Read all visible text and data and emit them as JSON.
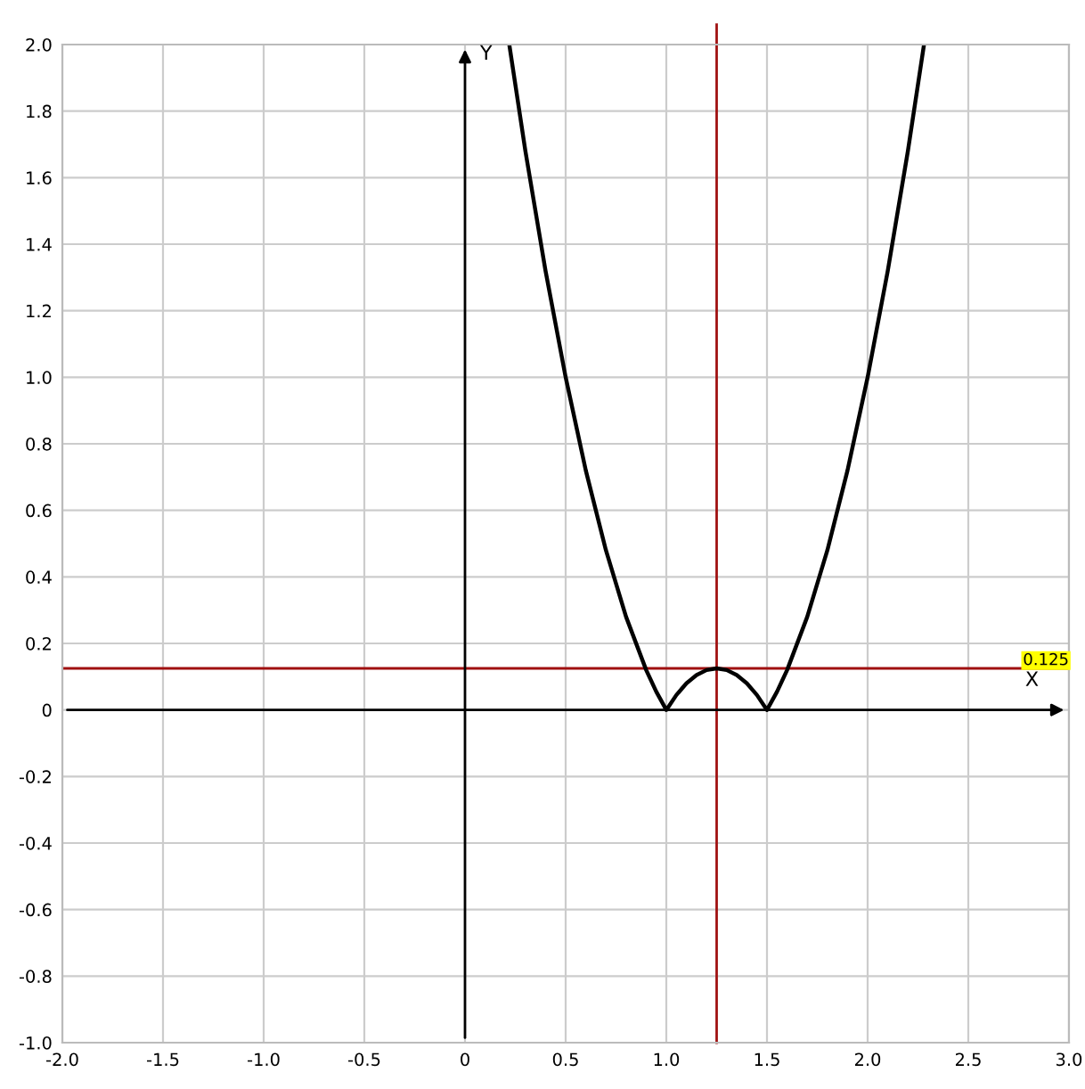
{
  "chart_data": {
    "type": "line",
    "xlabel": "X",
    "ylabel": "Y",
    "x": [
      0.22,
      0.3,
      0.4,
      0.5,
      0.6,
      0.7,
      0.8,
      0.9,
      0.95,
      1.0,
      1.05,
      1.1,
      1.15,
      1.2,
      1.25,
      1.3,
      1.35,
      1.4,
      1.45,
      1.5,
      1.55,
      1.6,
      1.7,
      1.8,
      1.9,
      2.0,
      2.1,
      2.2,
      2.28
    ],
    "series": [
      {
        "color": "#000000",
        "values": [
          2.0,
          1.68,
          1.32,
          1.0,
          0.72,
          0.48,
          0.28,
          0.12,
          0.055,
          0,
          0.045,
          0.08,
          0.105,
          0.12,
          0.125,
          0.12,
          0.105,
          0.08,
          0.045,
          0,
          0.055,
          0.12,
          0.28,
          0.48,
          0.72,
          1.0,
          1.32,
          1.68,
          2.0
        ]
      }
    ],
    "xlim": [
      -2.0,
      3.0
    ],
    "ylim": [
      -1.0,
      2.0
    ],
    "xticks": [
      {
        "value": -2.0,
        "label": "-2.0"
      },
      {
        "value": -1.5,
        "label": "-1.5"
      },
      {
        "value": -1.0,
        "label": "-1.0"
      },
      {
        "value": -0.5,
        "label": "-0.5"
      },
      0,
      0.5,
      {
        "value": 1.0,
        "label": "1.0"
      },
      1.5,
      {
        "value": 2.0,
        "label": "2.0"
      },
      2.5,
      {
        "value": 3.0,
        "label": "3.0"
      }
    ],
    "yticks": [
      {
        "value": -1.0,
        "label": "-1.0"
      },
      -0.8,
      -0.6,
      -0.4,
      -0.2,
      0,
      0.2,
      0.4,
      0.6,
      0.8,
      {
        "value": 1.0,
        "label": "1.0"
      },
      1.2,
      1.4,
      1.6,
      1.8,
      {
        "value": 2.0,
        "label": "2.0"
      }
    ],
    "grid": true,
    "ref_lines": [
      {
        "axis": "x",
        "value": 1.25,
        "color": "#a01010"
      },
      {
        "axis": "y",
        "value": 0.125,
        "label": "0.125",
        "color": "#a01010"
      }
    ]
  }
}
